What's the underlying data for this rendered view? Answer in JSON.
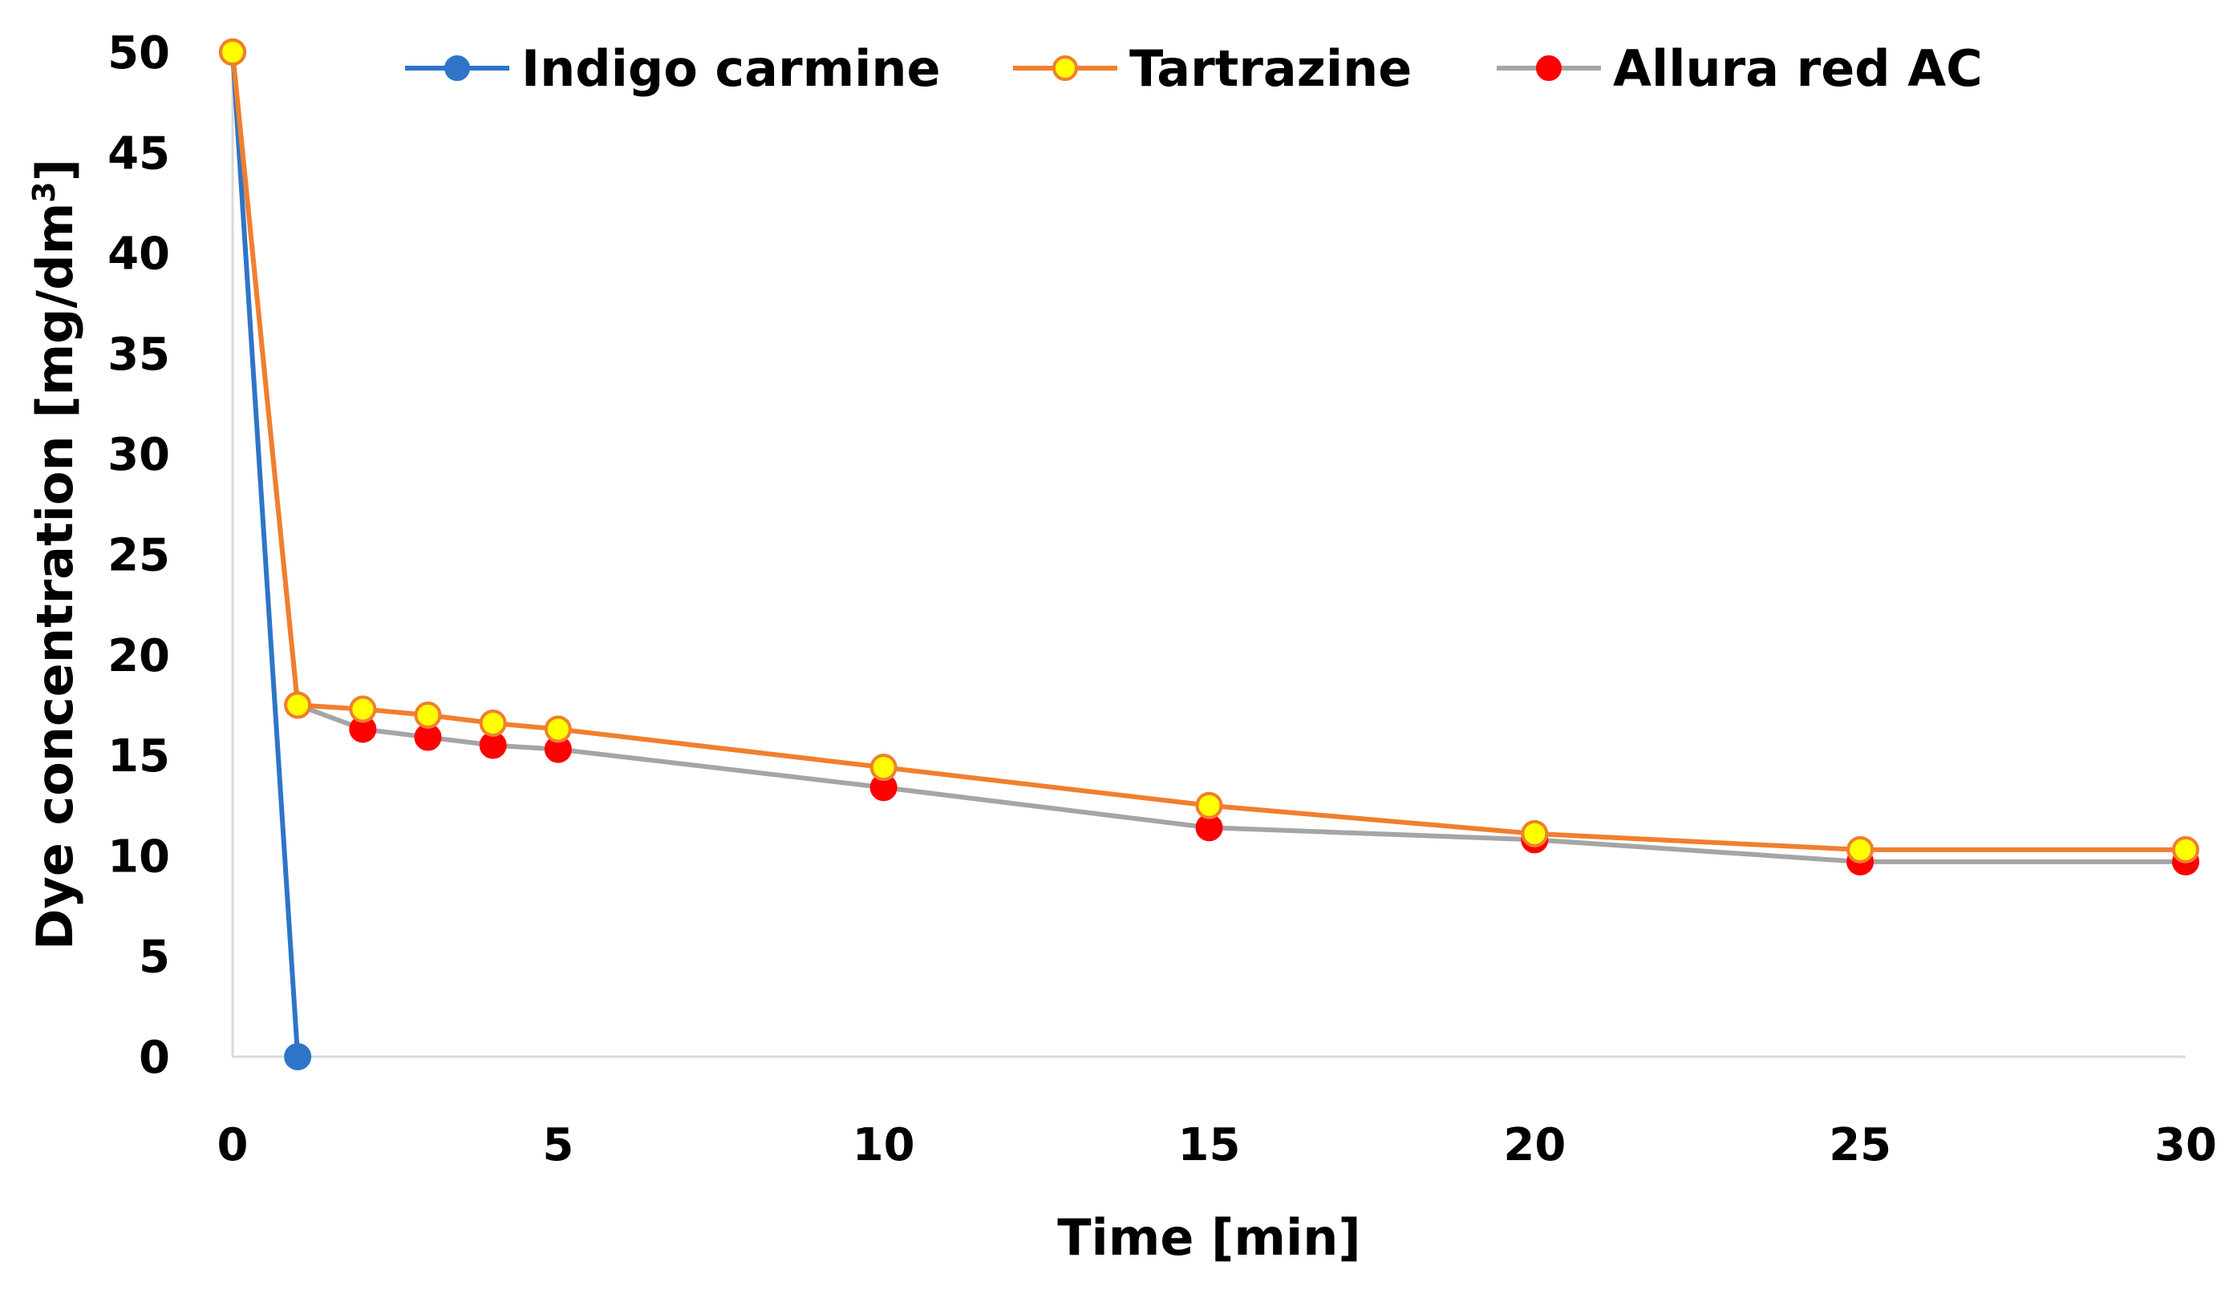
{
  "chart_data": {
    "type": "line",
    "title": "",
    "xlabel": "Time [min]",
    "ylabel_main": "Dye concentration [mg/dm",
    "ylabel_sup": "3",
    "ylabel_end": "]",
    "xlim": [
      0,
      30
    ],
    "ylim": [
      0,
      50
    ],
    "xticks": [
      0,
      5,
      10,
      15,
      20,
      25,
      30
    ],
    "yticks": [
      0,
      5,
      10,
      15,
      20,
      25,
      30,
      35,
      40,
      45,
      50
    ],
    "grid": false,
    "legend_position": "top",
    "series": [
      {
        "name": "Indigo carmine",
        "line_color": "#2E75C8",
        "marker_fill": "#2E75C8",
        "marker_stroke": "#2E75C8",
        "x": [
          0,
          1
        ],
        "y": [
          50,
          0
        ]
      },
      {
        "name": "Tartrazine",
        "line_color": "#F07F2E",
        "marker_fill": "#FFFF00",
        "marker_stroke": "#F07F2E",
        "x": [
          0,
          1,
          2,
          3,
          4,
          5,
          10,
          15,
          20,
          25,
          30
        ],
        "y": [
          50,
          17.5,
          17.3,
          17.0,
          16.6,
          16.3,
          14.4,
          12.5,
          11.1,
          10.3,
          10.3
        ]
      },
      {
        "name": "Allura red AC",
        "line_color": "#A5A5A5",
        "marker_fill": "#FF0000",
        "marker_stroke": "#FF0000",
        "x": [
          0,
          1,
          2,
          3,
          4,
          5,
          10,
          15,
          20,
          25,
          30
        ],
        "y": [
          50,
          17.5,
          16.3,
          15.9,
          15.5,
          15.3,
          13.4,
          11.4,
          10.8,
          9.7,
          9.7
        ]
      }
    ]
  }
}
